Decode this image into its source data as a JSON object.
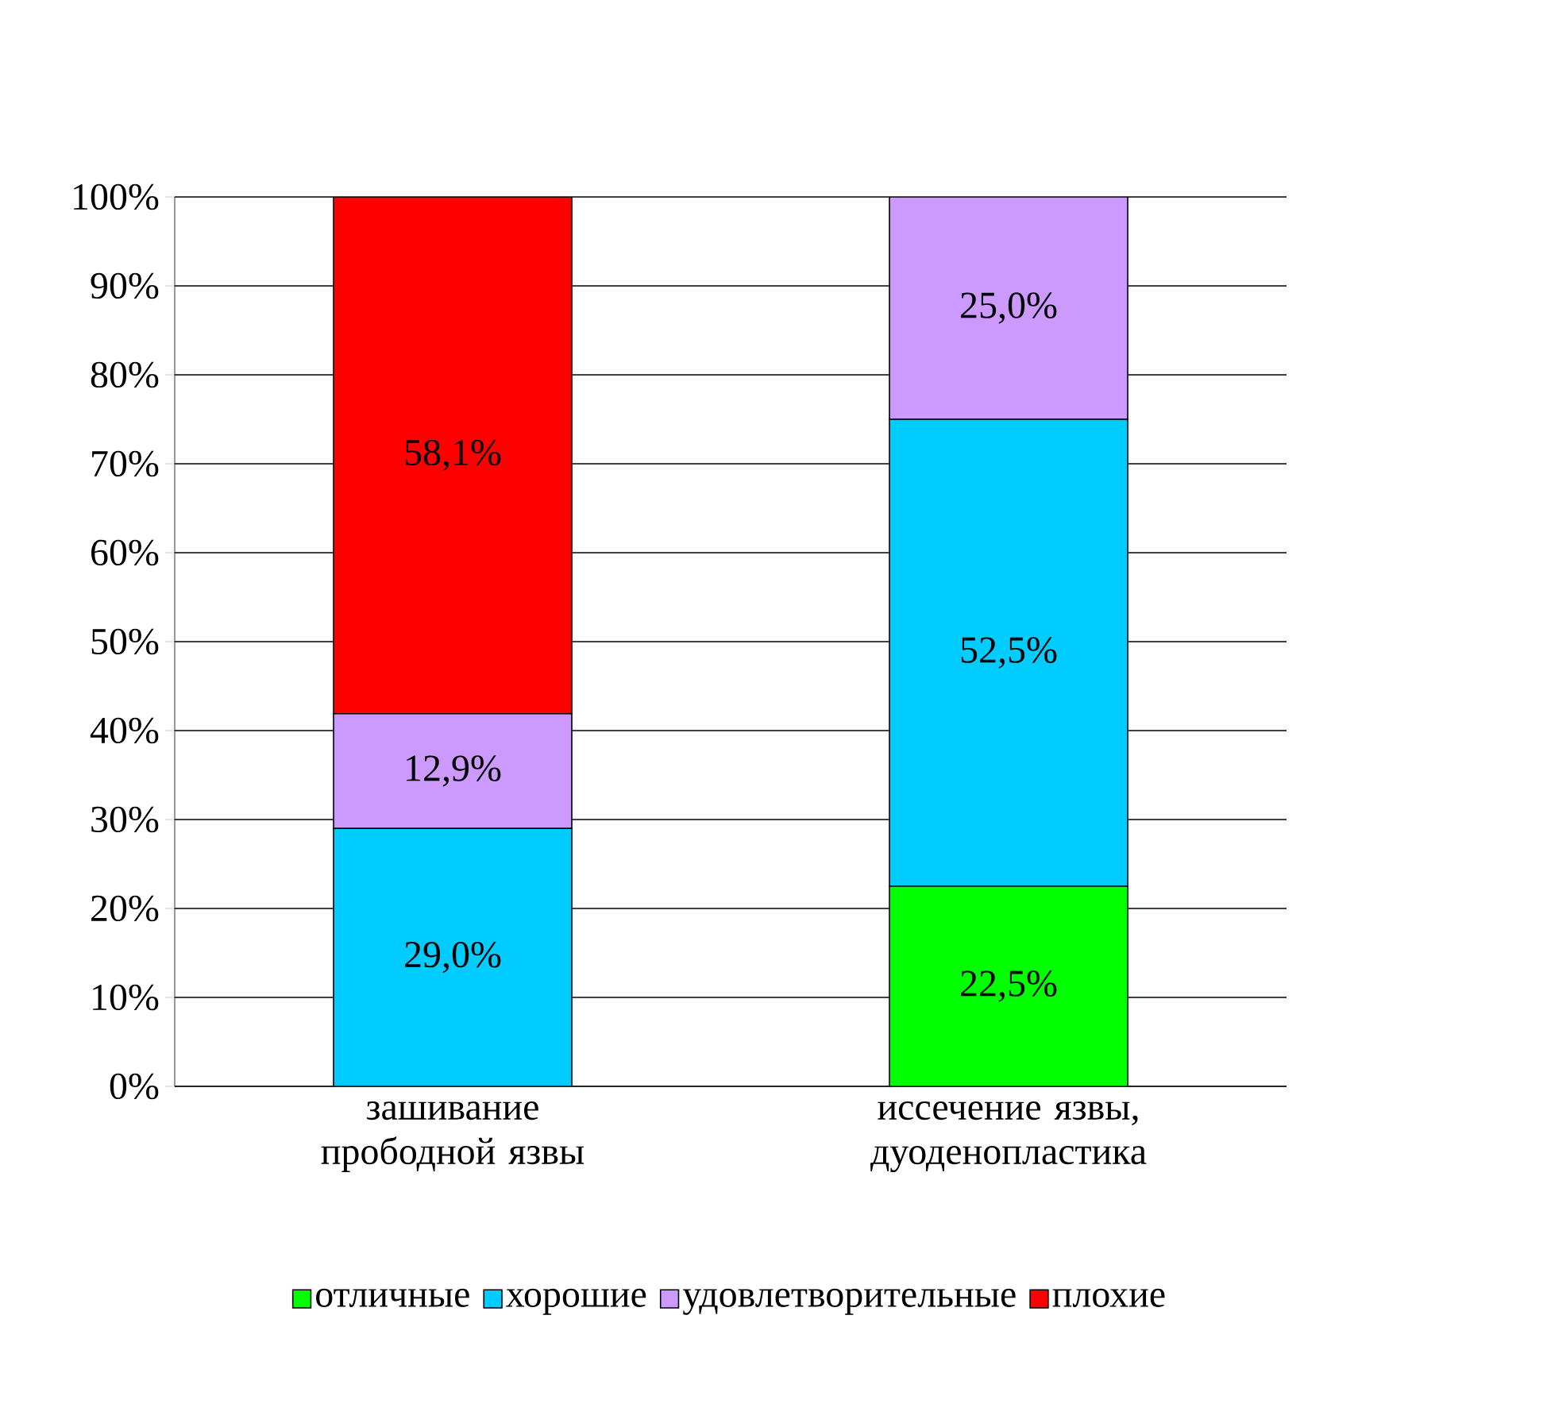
{
  "chart_data": {
    "type": "bar",
    "stacked": true,
    "categories": [
      "зашивание прободной язвы",
      "иссечение язвы, дуоденопластика"
    ],
    "series": [
      {
        "name": "отличные",
        "color": "#00ff00",
        "values": [
          0,
          22.5
        ],
        "value_labels": [
          null,
          "22,5%"
        ]
      },
      {
        "name": "хорошие",
        "color": "#00ccff",
        "values": [
          29.0,
          52.5
        ],
        "value_labels": [
          "29,0%",
          "52,5%"
        ]
      },
      {
        "name": "удовлетворительные",
        "color": "#cc99ff",
        "values": [
          12.9,
          25.0
        ],
        "value_labels": [
          "12,9%",
          "25,0%"
        ]
      },
      {
        "name": "плохие",
        "color": "#ff0000",
        "values": [
          58.1,
          0
        ],
        "value_labels": [
          "58,1%",
          null
        ]
      }
    ],
    "ylim": [
      0,
      100
    ],
    "yticks": [
      {
        "value": 0,
        "label": "0%"
      },
      {
        "value": 10,
        "label": "10%"
      },
      {
        "value": 20,
        "label": "20%"
      },
      {
        "value": 30,
        "label": "30%"
      },
      {
        "value": 40,
        "label": "40%"
      },
      {
        "value": 50,
        "label": "50%"
      },
      {
        "value": 60,
        "label": "60%"
      },
      {
        "value": 70,
        "label": "70%"
      },
      {
        "value": 80,
        "label": "80%"
      },
      {
        "value": 90,
        "label": "90%"
      },
      {
        "value": 100,
        "label": "100%"
      }
    ],
    "grid": "y",
    "legend": "bottom"
  }
}
